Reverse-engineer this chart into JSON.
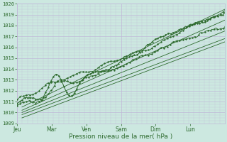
{
  "bg_color": "#cce8e0",
  "grid_major_color": "#c0b8d8",
  "grid_minor_color": "#d8c8d8",
  "line_color": "#2d6a2d",
  "xlabel": "Pression niveau de la mer( hPa )",
  "xlabel_color": "#2d6a2d",
  "yticks": [
    1009,
    1010,
    1011,
    1012,
    1013,
    1014,
    1015,
    1016,
    1017,
    1018,
    1019,
    1020
  ],
  "xtick_labels": [
    "Jeu",
    "Mar",
    "Ven",
    "Sam",
    "Dim",
    "Lun"
  ],
  "xtick_positions": [
    0.0,
    0.833,
    1.667,
    2.5,
    3.333,
    4.167
  ],
  "ymin": 1009,
  "ymax": 1020,
  "xmin": 0,
  "xmax": 5.0,
  "n_points": 400,
  "straight_lines": [
    {
      "x0": 0.12,
      "y0": 1010.5,
      "x1": 5.0,
      "y1": 1019.5
    },
    {
      "x0": 0.12,
      "y0": 1010.2,
      "x1": 5.0,
      "y1": 1018.5
    },
    {
      "x0": 0.12,
      "y0": 1010.0,
      "x1": 5.0,
      "y1": 1017.5
    },
    {
      "x0": 0.12,
      "y0": 1009.8,
      "x1": 5.0,
      "y1": 1016.8
    },
    {
      "x0": 0.12,
      "y0": 1009.5,
      "x1": 5.0,
      "y1": 1016.5
    }
  ]
}
